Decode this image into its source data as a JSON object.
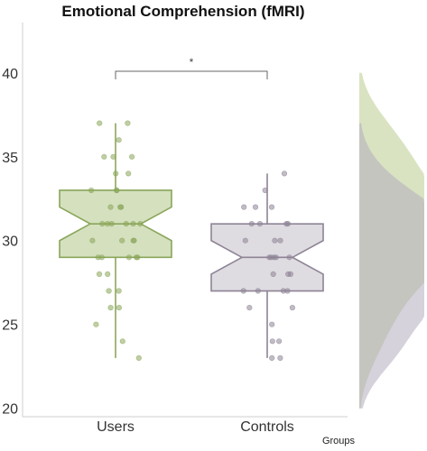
{
  "chart_data": {
    "type": "boxplot",
    "title": "Emotional Comprehension (fMRI)",
    "xlabel": "Groups",
    "ylabel": "",
    "ylim": [
      19.5,
      43
    ],
    "yticks": [
      20,
      25,
      30,
      35,
      40
    ],
    "categories": [
      "Users",
      "Controls"
    ],
    "grid": false,
    "notched": true,
    "significance": {
      "between": [
        "Users",
        "Controls"
      ],
      "label": "*"
    },
    "groups": [
      {
        "name": "Users",
        "color": "#8aa65a",
        "fill": "#d5e0bf",
        "whisker_low": 23,
        "q1": 29,
        "median": 31,
        "q3": 33,
        "whisker_high": 37,
        "notch_low": 30,
        "notch_high": 32,
        "points": [
          37,
          37,
          36,
          35,
          35,
          35,
          34,
          34,
          33,
          33,
          33,
          32,
          32,
          32,
          31,
          31,
          31,
          31,
          31,
          31,
          30,
          30,
          30,
          30,
          29,
          29,
          29,
          29,
          29,
          28,
          28,
          27,
          27,
          26,
          26,
          25,
          24,
          23
        ]
      },
      {
        "name": "Controls",
        "color": "#8e8495",
        "fill": "#dedbe1",
        "whisker_low": 23,
        "q1": 27,
        "median": 29,
        "q3": 31,
        "whisker_high": 34,
        "notch_low": 28,
        "notch_high": 30,
        "points": [
          34,
          33,
          32,
          32,
          32,
          31,
          31,
          31,
          31,
          30,
          30,
          30,
          29,
          29,
          29,
          29,
          29,
          28,
          28,
          28,
          27,
          27,
          27,
          27,
          26,
          26,
          25,
          24,
          24,
          23,
          23
        ]
      }
    ],
    "density": [
      {
        "group": "Users",
        "color": "#b9cc8e"
      },
      {
        "group": "Controls",
        "color": "#b5adbf"
      }
    ]
  }
}
